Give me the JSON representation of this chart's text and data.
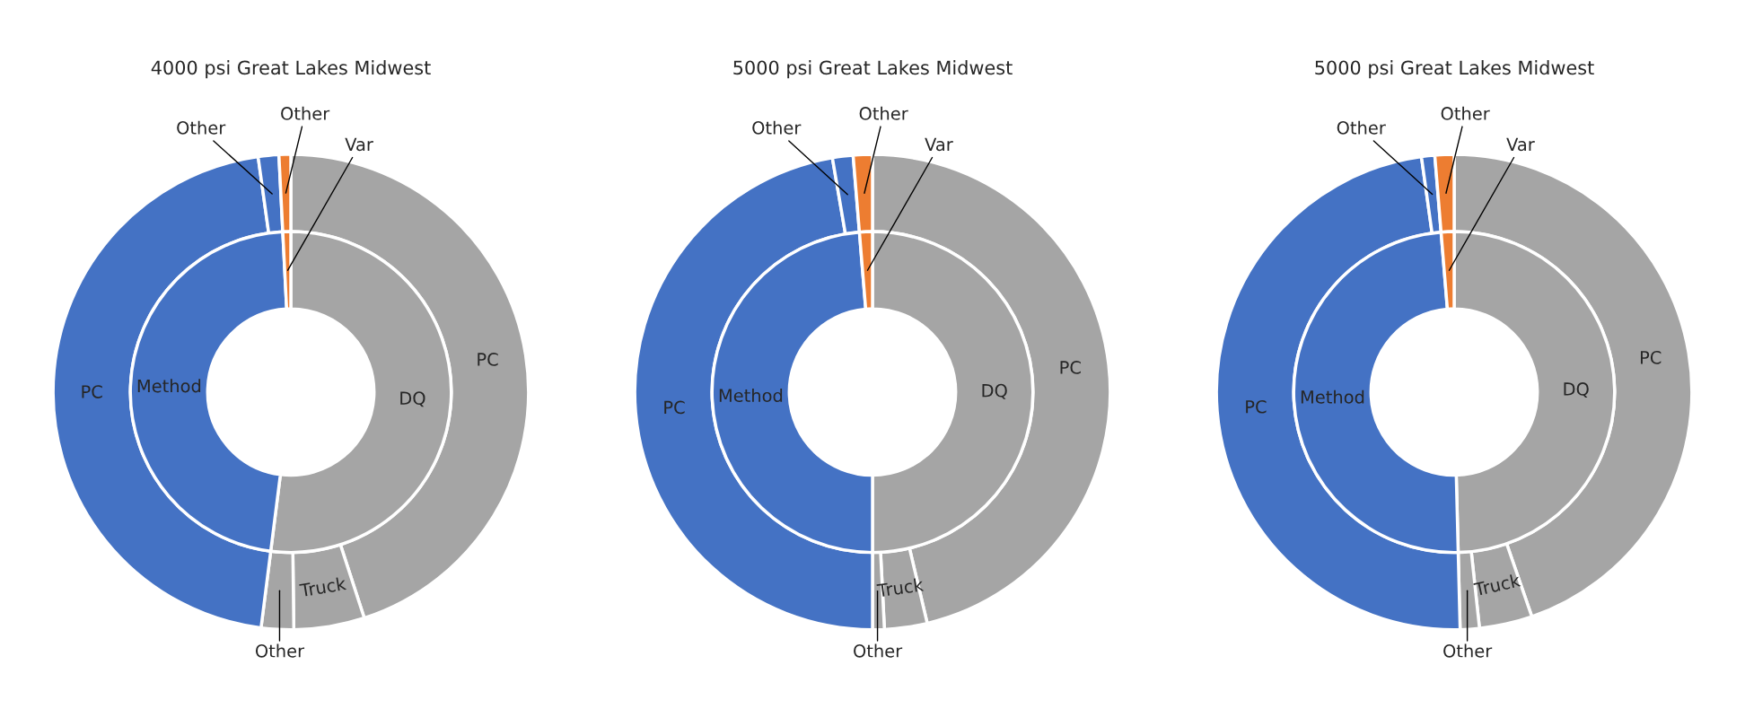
{
  "chart_data": [
    {
      "type": "donut",
      "title": "4000 psi Great Lakes Midwest",
      "categories": [
        "PC",
        "Truck",
        "Other",
        "PC",
        "Other",
        "Other"
      ],
      "annotations": [
        "DQ",
        "Method",
        "Var"
      ],
      "series": [
        {
          "values": [
            45,
            4.8,
            2.2,
            45.8,
            1.4,
            0.8
          ],
          "colors": [
            "#a5a5a5",
            "#a5a5a5",
            "#a5a5a5",
            "#4472c4",
            "#4472c4",
            "#ed7d31"
          ]
        },
        {
          "values": [
            52,
            null,
            null,
            47.2,
            null,
            0.8
          ],
          "colors": [
            "#a5a5a5",
            null,
            null,
            "#4472c4",
            null,
            "#ed7d31"
          ]
        }
      ]
    },
    {
      "type": "donut",
      "title": "5000 psi Great Lakes Midwest",
      "categories": [
        "PC",
        "Truck",
        "Other",
        "PC",
        "Other",
        "Other"
      ],
      "annotations": [
        "DQ",
        "Method",
        "Var"
      ],
      "series": [
        {
          "values": [
            46.3,
            2.9,
            0.8,
            47.3,
            1.4,
            1.3
          ],
          "colors": [
            "#a5a5a5",
            "#a5a5a5",
            "#a5a5a5",
            "#4472c4",
            "#4472c4",
            "#ed7d31"
          ]
        },
        {
          "values": [
            50,
            null,
            null,
            48.7,
            null,
            1.3
          ],
          "colors": [
            "#a5a5a5",
            null,
            null,
            "#4472c4",
            null,
            "#ed7d31"
          ]
        }
      ]
    },
    {
      "type": "donut",
      "title": "5000 psi Great Lakes Midwest",
      "categories": [
        "PC",
        "Truck",
        "Other",
        "PC",
        "Other",
        "Other"
      ],
      "annotations": [
        "DQ",
        "Method",
        "Var"
      ],
      "series": [
        {
          "values": [
            44.7,
            3.6,
            1.3,
            48.2,
            0.9,
            1.3
          ],
          "colors": [
            "#a5a5a5",
            "#a5a5a5",
            "#a5a5a5",
            "#4472c4",
            "#4472c4",
            "#ed7d31"
          ]
        },
        {
          "values": [
            49.6,
            null,
            null,
            49.1,
            null,
            1.3
          ],
          "colors": [
            "#a5a5a5",
            null,
            null,
            "#4472c4",
            null,
            "#ed7d31"
          ]
        }
      ]
    }
  ]
}
